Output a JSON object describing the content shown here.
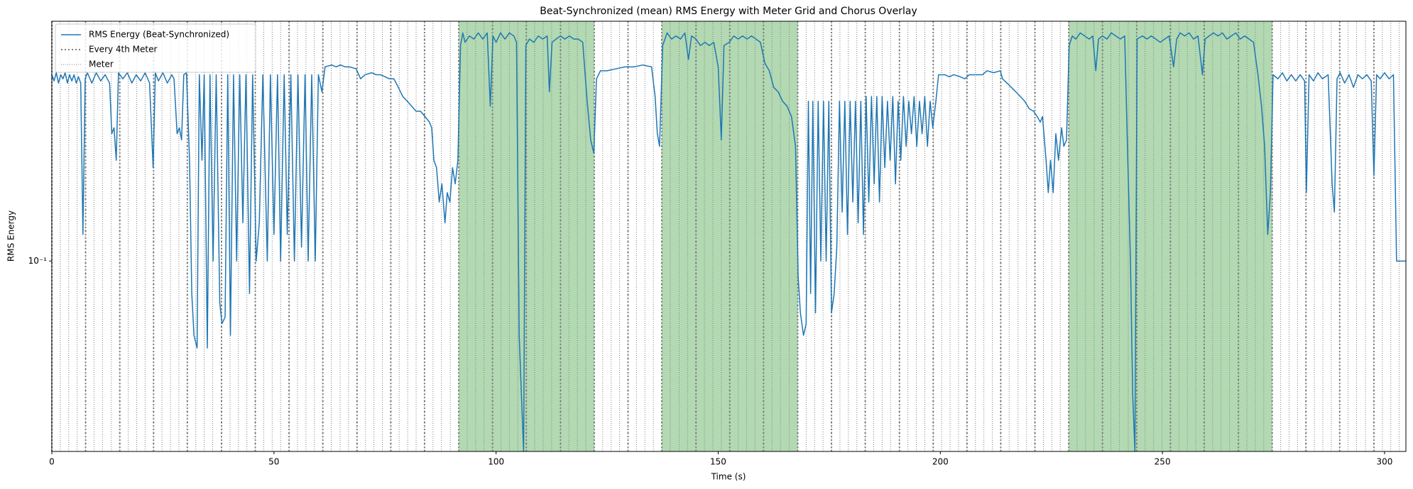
{
  "chart_data": {
    "type": "line",
    "title": "Beat-Synchronized (mean) RMS Energy with Meter Grid and Chorus Overlay",
    "xlabel": "Time (s)",
    "ylabel": "RMS Energy",
    "yscale": "log",
    "xlim": [
      0,
      304.8
    ],
    "xticks": [
      0,
      50,
      100,
      150,
      200,
      250,
      300
    ],
    "ylim": [
      0.027,
      0.52
    ],
    "yticks": [
      {
        "value": 0.1,
        "label": "10⁻¹"
      }
    ],
    "legend": "upper left",
    "chorus": {
      "color": "green",
      "alpha": 0.3,
      "spans": [
        [
          91.6,
          122.1
        ],
        [
          137.3,
          167.9
        ],
        [
          228.9,
          274.7
        ]
      ]
    },
    "vlines": [
      {
        "name": "Every 4th Meter",
        "color": "gray",
        "width": 2,
        "dash": "2 3",
        "x": [
          0,
          7.6,
          15.3,
          22.9,
          30.5,
          38.2,
          45.8,
          53.4,
          61.0,
          68.7,
          76.3,
          83.9,
          91.6,
          99.2,
          106.8,
          114.5,
          122.1,
          129.7,
          137.3,
          145.0,
          152.6,
          160.2,
          167.9,
          175.5,
          183.1,
          190.8,
          198.4,
          206.0,
          213.6,
          221.3,
          228.9,
          236.5,
          244.2,
          251.8,
          259.4,
          267.1,
          274.7,
          282.3,
          289.9,
          297.6
        ]
      },
      {
        "name": "Meter",
        "color": "gray",
        "width": 1,
        "dash": "1 2",
        "x": [
          0,
          1.9,
          3.8,
          5.7,
          7.6,
          9.5,
          11.4,
          13.4,
          15.3,
          17.2,
          19.1,
          21.0,
          22.9,
          24.8,
          26.7,
          28.6,
          30.5,
          32.4,
          34.3,
          36.2,
          38.2,
          40.1,
          42.0,
          43.9,
          45.8,
          47.7,
          49.6,
          51.5,
          53.4,
          55.3,
          57.2,
          59.1,
          61.0,
          62.9,
          64.9,
          66.8,
          68.7,
          70.6,
          72.5,
          74.4,
          76.3,
          78.2,
          80.1,
          82.0,
          83.9,
          85.8,
          87.7,
          89.7,
          91.6,
          93.5,
          95.4,
          97.3,
          99.2,
          101.1,
          103.0,
          104.9,
          106.8,
          108.7,
          110.6,
          112.5,
          114.5,
          116.4,
          118.3,
          120.2,
          122.1,
          124.0,
          125.9,
          127.8,
          129.7,
          131.6,
          133.5,
          135.4,
          137.3,
          139.2,
          141.2,
          143.1,
          145.0,
          146.9,
          148.8,
          150.7,
          152.6,
          154.5,
          156.4,
          158.3,
          160.2,
          162.1,
          164.0,
          166.0,
          167.9,
          169.8,
          171.7,
          173.6,
          175.5,
          177.4,
          179.3,
          181.2,
          183.1,
          185.0,
          186.9,
          188.8,
          190.8,
          192.7,
          194.6,
          196.5,
          198.4,
          200.3,
          202.2,
          204.1,
          206.0,
          207.9,
          209.8,
          211.7,
          213.6,
          215.5,
          217.5,
          219.4,
          221.3,
          223.2,
          225.1,
          227.0,
          228.9,
          230.8,
          232.7,
          234.6,
          236.5,
          238.4,
          240.3,
          242.3,
          244.2,
          246.1,
          248.0,
          249.9,
          251.8,
          253.7,
          255.6,
          257.5,
          259.4,
          261.3,
          263.2,
          265.1,
          267.1,
          269.0,
          270.9,
          272.8,
          274.7,
          276.6,
          278.5,
          280.4,
          282.3,
          284.2,
          286.1,
          288.0,
          289.9,
          291.8,
          293.7,
          295.7,
          297.6,
          299.5,
          301.4,
          303.3
        ]
      }
    ],
    "x": [
      0,
      0.5,
      1,
      1.5,
      2,
      2.5,
      3,
      3.5,
      4,
      4.5,
      5,
      5.5,
      6,
      6.5,
      7,
      7.5,
      8,
      9,
      10,
      11,
      12,
      13,
      13.5,
      14,
      14.5,
      15,
      16,
      17,
      18,
      19,
      20,
      21,
      22,
      22.8,
      23.3,
      24,
      25,
      26,
      27,
      27.5,
      28.2,
      28.7,
      29.2,
      29.7,
      30.3,
      31,
      31.5,
      32,
      32.7,
      33.2,
      33.8,
      34.3,
      35,
      35.6,
      36.3,
      37,
      37.8,
      38.3,
      39,
      39.6,
      40.2,
      40.9,
      41.6,
      42.3,
      43,
      43.7,
      44.5,
      45.2,
      46,
      46.7,
      47.5,
      48.5,
      49.2,
      50,
      50.8,
      51.5,
      52.3,
      53,
      53.8,
      54.6,
      55.4,
      56.2,
      57,
      57.7,
      58.5,
      59.3,
      60,
      60.8,
      61.5,
      63,
      64,
      65,
      66,
      67,
      68.5,
      69.5,
      70.5,
      72,
      73,
      74,
      75,
      76,
      77,
      78,
      79,
      80,
      81,
      82,
      83,
      84,
      85,
      85.5,
      86,
      86.6,
      87.2,
      87.8,
      88.5,
      89,
      89.6,
      90.2,
      90.8,
      91.4,
      92,
      92.5,
      93,
      94,
      95,
      96,
      97,
      98,
      98.7,
      99.3,
      100,
      101,
      102,
      103,
      104,
      104.6,
      105.2,
      105.7,
      106.2,
      106.7,
      107.5,
      108.5,
      109.5,
      110.5,
      111.5,
      112,
      112.6,
      113.5,
      114.5,
      115.5,
      116.5,
      117.5,
      118.5,
      119.5,
      120.5,
      121.3,
      122,
      122.6,
      123.5,
      125,
      127,
      129,
      131,
      133,
      135,
      135.8,
      136.3,
      136.8,
      137.5,
      138.5,
      139.5,
      140.5,
      141.5,
      142.5,
      143.3,
      144,
      145,
      146,
      147,
      148,
      149,
      150,
      150.7,
      151.3,
      152.5,
      153.5,
      154.5,
      155.5,
      156.5,
      157.5,
      158.5,
      159.5,
      160.5,
      161.5,
      162.5,
      163.5,
      164.5,
      165.5,
      166.5,
      167.4,
      168,
      168.5,
      169.2,
      169.8,
      170.3,
      170.8,
      171.3,
      171.9,
      172.5,
      173.1,
      173.7,
      174.3,
      174.9,
      175.5,
      176.1,
      176.7,
      177.3,
      177.9,
      178.5,
      179.1,
      179.7,
      180.3,
      180.9,
      181.5,
      182.1,
      182.7,
      183.3,
      183.9,
      184.5,
      185.1,
      185.7,
      186.3,
      186.9,
      187.5,
      188.1,
      188.7,
      189.3,
      189.9,
      190.5,
      191.1,
      191.7,
      192.3,
      192.9,
      193.5,
      194.1,
      194.7,
      195.3,
      195.9,
      196.5,
      197.1,
      197.7,
      198.3,
      199,
      199.6,
      201,
      202,
      203,
      204.5,
      205.5,
      206.5,
      208,
      209.5,
      210.5,
      212,
      213.5,
      214,
      215,
      216,
      217,
      218,
      219,
      220,
      221,
      221.8,
      222.5,
      223,
      223.8,
      224.3,
      224.8,
      225.4,
      226,
      226.6,
      227.3,
      227.8,
      228.4,
      229,
      229.7,
      230.5,
      231.5,
      232.5,
      233.5,
      234.3,
      235,
      235.6,
      236.5,
      237.5,
      238.5,
      239.5,
      240.5,
      241.5,
      242.2,
      242.8,
      243.3,
      243.8,
      244.3,
      245.5,
      246.5,
      247.5,
      248.5,
      249.5,
      250.5,
      251.5,
      252.5,
      253.2,
      254,
      255,
      256,
      257,
      258,
      259,
      259.6,
      260.5,
      261.5,
      262.5,
      263.5,
      264.5,
      265.5,
      266.5,
      267.5,
      268.5,
      269.5,
      270.5,
      271.5,
      272.3,
      273,
      273.7,
      274.3,
      274.9,
      276,
      277,
      278,
      279,
      280,
      281,
      282,
      282.4,
      283,
      284,
      285,
      286,
      287.3,
      288.2,
      288.7,
      289.3,
      290,
      291,
      292,
      293,
      294,
      295,
      296,
      297,
      297.6,
      298.2,
      299,
      300,
      301,
      302,
      302.7,
      304.8
    ],
    "series": [
      {
        "name": "RMS Energy (Beat-Synchronized)",
        "color": "#1f77b4",
        "values": [
          0.36,
          0.345,
          0.365,
          0.34,
          0.36,
          0.35,
          0.365,
          0.34,
          0.36,
          0.345,
          0.36,
          0.34,
          0.355,
          0.34,
          0.12,
          0.35,
          0.365,
          0.34,
          0.365,
          0.345,
          0.36,
          0.34,
          0.24,
          0.25,
          0.2,
          0.365,
          0.35,
          0.365,
          0.34,
          0.36,
          0.345,
          0.365,
          0.34,
          0.19,
          0.365,
          0.345,
          0.365,
          0.34,
          0.36,
          0.35,
          0.24,
          0.25,
          0.23,
          0.36,
          0.365,
          0.2,
          0.08,
          0.06,
          0.055,
          0.36,
          0.2,
          0.36,
          0.055,
          0.36,
          0.1,
          0.36,
          0.075,
          0.065,
          0.068,
          0.36,
          0.06,
          0.36,
          0.1,
          0.36,
          0.13,
          0.36,
          0.08,
          0.36,
          0.1,
          0.13,
          0.36,
          0.1,
          0.36,
          0.12,
          0.36,
          0.1,
          0.36,
          0.12,
          0.36,
          0.1,
          0.36,
          0.11,
          0.36,
          0.1,
          0.36,
          0.1,
          0.36,
          0.32,
          0.38,
          0.385,
          0.38,
          0.385,
          0.38,
          0.38,
          0.375,
          0.35,
          0.36,
          0.365,
          0.36,
          0.36,
          0.355,
          0.35,
          0.35,
          0.33,
          0.31,
          0.3,
          0.29,
          0.28,
          0.28,
          0.27,
          0.26,
          0.25,
          0.2,
          0.19,
          0.15,
          0.17,
          0.13,
          0.16,
          0.15,
          0.19,
          0.17,
          0.2,
          0.44,
          0.48,
          0.45,
          0.47,
          0.46,
          0.48,
          0.46,
          0.48,
          0.29,
          0.47,
          0.45,
          0.48,
          0.46,
          0.48,
          0.47,
          0.45,
          0.06,
          0.04,
          0.027,
          0.44,
          0.46,
          0.45,
          0.47,
          0.46,
          0.47,
          0.32,
          0.45,
          0.46,
          0.47,
          0.46,
          0.47,
          0.46,
          0.46,
          0.45,
          0.3,
          0.23,
          0.21,
          0.35,
          0.37,
          0.37,
          0.375,
          0.38,
          0.38,
          0.385,
          0.38,
          0.31,
          0.24,
          0.22,
          0.44,
          0.48,
          0.46,
          0.47,
          0.46,
          0.48,
          0.4,
          0.47,
          0.46,
          0.44,
          0.45,
          0.44,
          0.45,
          0.38,
          0.23,
          0.44,
          0.45,
          0.47,
          0.46,
          0.47,
          0.46,
          0.47,
          0.46,
          0.45,
          0.39,
          0.37,
          0.33,
          0.32,
          0.3,
          0.29,
          0.27,
          0.22,
          0.09,
          0.07,
          0.06,
          0.065,
          0.3,
          0.08,
          0.3,
          0.07,
          0.3,
          0.1,
          0.3,
          0.1,
          0.3,
          0.07,
          0.08,
          0.11,
          0.3,
          0.14,
          0.3,
          0.12,
          0.3,
          0.15,
          0.3,
          0.13,
          0.3,
          0.12,
          0.31,
          0.15,
          0.31,
          0.17,
          0.31,
          0.15,
          0.31,
          0.19,
          0.3,
          0.2,
          0.31,
          0.17,
          0.3,
          0.2,
          0.31,
          0.22,
          0.3,
          0.24,
          0.31,
          0.22,
          0.3,
          0.24,
          0.31,
          0.22,
          0.3,
          0.25,
          0.3,
          0.36,
          0.36,
          0.355,
          0.36,
          0.355,
          0.35,
          0.36,
          0.36,
          0.36,
          0.37,
          0.365,
          0.37,
          0.35,
          0.34,
          0.33,
          0.32,
          0.31,
          0.3,
          0.285,
          0.28,
          0.27,
          0.26,
          0.27,
          0.2,
          0.16,
          0.2,
          0.16,
          0.24,
          0.2,
          0.25,
          0.22,
          0.23,
          0.44,
          0.47,
          0.46,
          0.48,
          0.47,
          0.46,
          0.47,
          0.37,
          0.46,
          0.47,
          0.46,
          0.48,
          0.47,
          0.46,
          0.47,
          0.2,
          0.1,
          0.04,
          0.027,
          0.46,
          0.47,
          0.46,
          0.47,
          0.46,
          0.45,
          0.46,
          0.47,
          0.38,
          0.46,
          0.48,
          0.47,
          0.48,
          0.46,
          0.47,
          0.36,
          0.46,
          0.47,
          0.48,
          0.47,
          0.48,
          0.46,
          0.47,
          0.48,
          0.46,
          0.47,
          0.46,
          0.45,
          0.36,
          0.29,
          0.22,
          0.12,
          0.16,
          0.36,
          0.35,
          0.365,
          0.345,
          0.36,
          0.345,
          0.36,
          0.345,
          0.16,
          0.36,
          0.345,
          0.365,
          0.35,
          0.36,
          0.17,
          0.14,
          0.35,
          0.365,
          0.34,
          0.36,
          0.33,
          0.36,
          0.35,
          0.36,
          0.345,
          0.18,
          0.36,
          0.35,
          0.365,
          0.35,
          0.36,
          0.1,
          0.1
        ]
      }
    ]
  }
}
